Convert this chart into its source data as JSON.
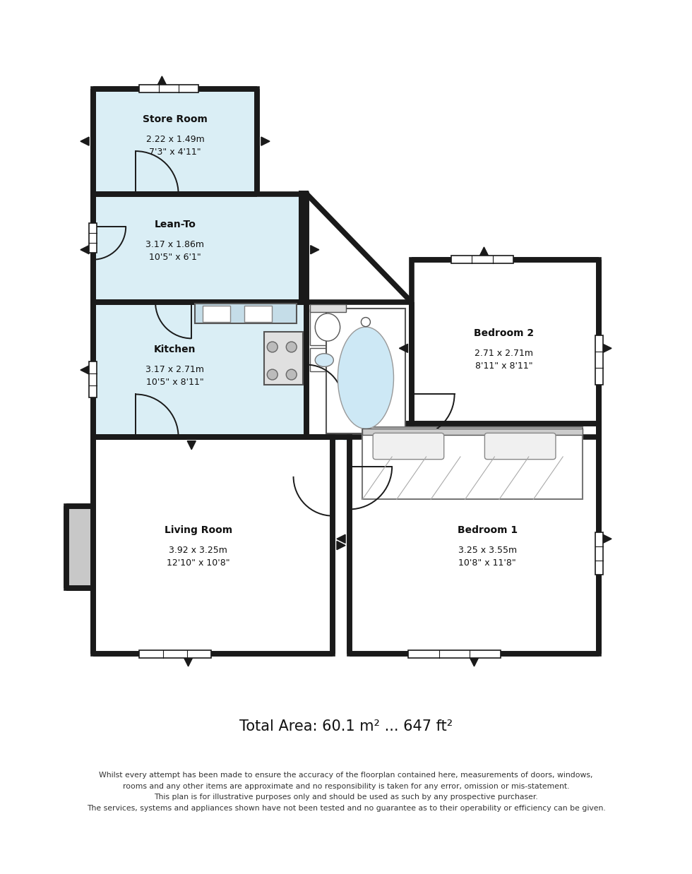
{
  "bg_color": "#ffffff",
  "wall_color": "#1a1a1a",
  "room_fill_blue": "#daeef5",
  "wall_lw": 5.5,
  "title": "Total Area: 60.1 m² ... 647 ft²",
  "disclaimer": "Whilst every attempt has been made to ensure the accuracy of the floorplan contained here, measurements of doors, windows,\nrooms and any other items are approximate and no responsibility is taken for any error, omission or mis-statement.\nThis plan is for illustrative purposes only and should be used as such by any prospective purchaser.\nThe services, systems and appliances shown have not been tested and no guarantee as to their operability or efficiency can be given.",
  "watermark_color": "#b8d8e8",
  "rooms": {
    "store_room": {
      "label": "Store Room",
      "sub": "2.22 x 1.49m\n7'3\" x 4'11\""
    },
    "lean_to": {
      "label": "Lean-To",
      "sub": "3.17 x 1.86m\n10'5\" x 6'1\""
    },
    "kitchen": {
      "label": "Kitchen",
      "sub": "3.17 x 2.71m\n10'5\" x 8'11\""
    },
    "bedroom2": {
      "label": "Bedroom 2",
      "sub": "2.71 x 2.71m\n8'11\" x 8'11\""
    },
    "living_room": {
      "label": "Living Room",
      "sub": "3.92 x 3.25m\n12'10\" x 10'8\""
    },
    "bedroom1": {
      "label": "Bedroom 1",
      "sub": "3.25 x 3.55m\n10'8\" x 11'8\""
    }
  }
}
